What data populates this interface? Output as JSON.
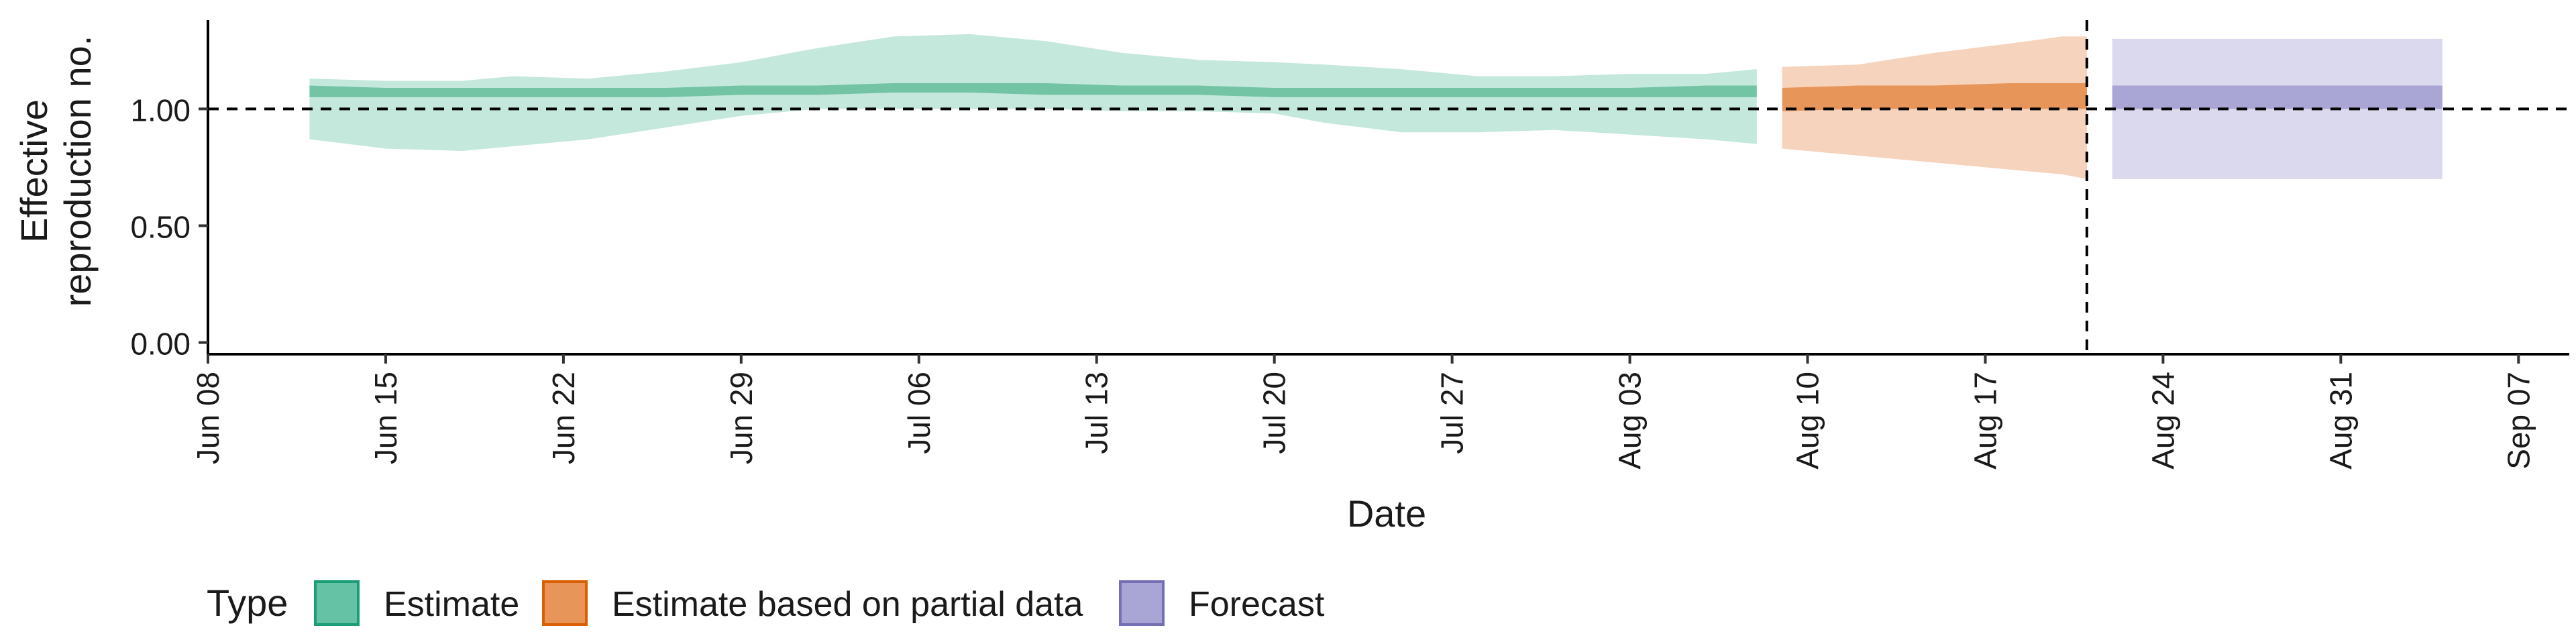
{
  "chart_data": {
    "type": "area",
    "ylabel_lines": [
      "Effective",
      "reproduction no."
    ],
    "xlabel": "Date",
    "x_ticks": [
      "Jun 08",
      "Jun 15",
      "Jun 22",
      "Jun 29",
      "Jul 06",
      "Jul 13",
      "Jul 20",
      "Jul 27",
      "Aug 03",
      "Aug 10",
      "Aug 17",
      "Aug 24",
      "Aug 31",
      "Sep 07"
    ],
    "x_tick_dates": [
      "2020-06-08",
      "2020-06-15",
      "2020-06-22",
      "2020-06-29",
      "2020-07-06",
      "2020-07-13",
      "2020-07-20",
      "2020-07-27",
      "2020-08-03",
      "2020-08-10",
      "2020-08-17",
      "2020-08-24",
      "2020-08-31",
      "2020-09-07"
    ],
    "y_ticks": [
      0.0,
      0.5,
      1.0
    ],
    "y_tick_labels": [
      "0.00",
      "0.50",
      "1.00"
    ],
    "xlim": [
      "2020-06-08",
      "2020-09-09"
    ],
    "ylim": [
      -0.05,
      1.38
    ],
    "hline": 1.0,
    "vline_date": "2020-08-21",
    "grid": false,
    "legend": {
      "title": "Type",
      "position": "bottom-left",
      "entries": [
        {
          "label": "Estimate",
          "fill": "#66c2a5",
          "border": "#1b9e77"
        },
        {
          "label": "Estimate based on partial data",
          "fill": "#e8955a",
          "border": "#d95f02"
        },
        {
          "label": "Forecast",
          "fill": "#a9a6d6",
          "border": "#7570b3"
        }
      ]
    },
    "series": [
      {
        "name": "Estimate",
        "outer_color": "#c5e8dc",
        "inner_color": "#73c4a5",
        "points": [
          {
            "x": "2020-06-12",
            "lo90": 0.87,
            "hi90": 1.13,
            "lo50": 1.05,
            "hi50": 1.1
          },
          {
            "x": "2020-06-15",
            "lo90": 0.83,
            "hi90": 1.12,
            "lo50": 1.05,
            "hi50": 1.09
          },
          {
            "x": "2020-06-18",
            "lo90": 0.82,
            "hi90": 1.12,
            "lo50": 1.05,
            "hi50": 1.09
          },
          {
            "x": "2020-06-20",
            "lo90": 0.84,
            "hi90": 1.14,
            "lo50": 1.05,
            "hi50": 1.09
          },
          {
            "x": "2020-06-23",
            "lo90": 0.87,
            "hi90": 1.13,
            "lo50": 1.05,
            "hi50": 1.09
          },
          {
            "x": "2020-06-26",
            "lo90": 0.92,
            "hi90": 1.16,
            "lo50": 1.05,
            "hi50": 1.09
          },
          {
            "x": "2020-06-29",
            "lo90": 0.97,
            "hi90": 1.2,
            "lo50": 1.06,
            "hi50": 1.1
          },
          {
            "x": "2020-07-02",
            "lo90": 1.0,
            "hi90": 1.26,
            "lo50": 1.06,
            "hi50": 1.1
          },
          {
            "x": "2020-07-05",
            "lo90": 1.0,
            "hi90": 1.31,
            "lo50": 1.07,
            "hi50": 1.11
          },
          {
            "x": "2020-07-08",
            "lo90": 1.0,
            "hi90": 1.32,
            "lo50": 1.07,
            "hi50": 1.11
          },
          {
            "x": "2020-07-11",
            "lo90": 1.0,
            "hi90": 1.29,
            "lo50": 1.06,
            "hi50": 1.11
          },
          {
            "x": "2020-07-14",
            "lo90": 0.99,
            "hi90": 1.24,
            "lo50": 1.06,
            "hi50": 1.1
          },
          {
            "x": "2020-07-17",
            "lo90": 0.99,
            "hi90": 1.21,
            "lo50": 1.06,
            "hi50": 1.1
          },
          {
            "x": "2020-07-20",
            "lo90": 0.98,
            "hi90": 1.2,
            "lo50": 1.05,
            "hi50": 1.09
          },
          {
            "x": "2020-07-22",
            "lo90": 0.94,
            "hi90": 1.19,
            "lo50": 1.05,
            "hi50": 1.09
          },
          {
            "x": "2020-07-25",
            "lo90": 0.9,
            "hi90": 1.17,
            "lo50": 1.05,
            "hi50": 1.09
          },
          {
            "x": "2020-07-28",
            "lo90": 0.9,
            "hi90": 1.14,
            "lo50": 1.05,
            "hi50": 1.09
          },
          {
            "x": "2020-07-31",
            "lo90": 0.91,
            "hi90": 1.14,
            "lo50": 1.05,
            "hi50": 1.09
          },
          {
            "x": "2020-08-03",
            "lo90": 0.89,
            "hi90": 1.15,
            "lo50": 1.05,
            "hi50": 1.09
          },
          {
            "x": "2020-08-06",
            "lo90": 0.87,
            "hi90": 1.15,
            "lo50": 1.05,
            "hi50": 1.1
          },
          {
            "x": "2020-08-08",
            "lo90": 0.85,
            "hi90": 1.17,
            "lo50": 1.05,
            "hi50": 1.1
          }
        ]
      },
      {
        "name": "Estimate based on partial data",
        "outer_color": "#f5d3bc",
        "inner_color": "#e8955a",
        "points": [
          {
            "x": "2020-08-09",
            "lo90": 0.83,
            "hi90": 1.18,
            "lo50": 0.99,
            "hi50": 1.09
          },
          {
            "x": "2020-08-12",
            "lo90": 0.8,
            "hi90": 1.19,
            "lo50": 1.0,
            "hi50": 1.1
          },
          {
            "x": "2020-08-15",
            "lo90": 0.77,
            "hi90": 1.24,
            "lo50": 1.0,
            "hi50": 1.1
          },
          {
            "x": "2020-08-18",
            "lo90": 0.74,
            "hi90": 1.28,
            "lo50": 1.0,
            "hi50": 1.11
          },
          {
            "x": "2020-08-20",
            "lo90": 0.72,
            "hi90": 1.31,
            "lo50": 1.0,
            "hi50": 1.11
          },
          {
            "x": "2020-08-21",
            "lo90": 0.7,
            "hi90": 1.31,
            "lo50": 1.0,
            "hi50": 1.11
          }
        ]
      },
      {
        "name": "Forecast",
        "outer_color": "#dad9ed",
        "inner_color": "#a9a6d6",
        "points": [
          {
            "x": "2020-08-22",
            "lo90": 0.7,
            "hi90": 1.3,
            "lo50": 1.0,
            "hi50": 1.1
          },
          {
            "x": "2020-09-04",
            "lo90": 0.7,
            "hi90": 1.3,
            "lo50": 1.0,
            "hi50": 1.1
          }
        ]
      }
    ]
  }
}
